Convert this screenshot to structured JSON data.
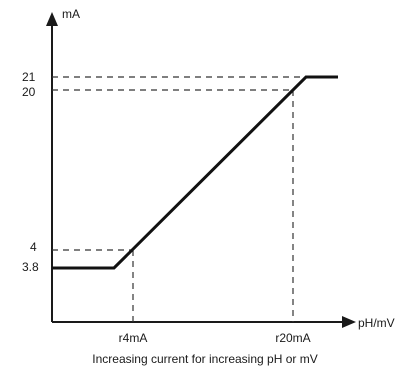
{
  "chart_data": {
    "type": "line",
    "ylabel": "mA",
    "xlabel": "pH/mV",
    "caption": "Increasing current for increasing pH or mV",
    "y_ticks": [
      "21",
      "20",
      "4",
      "3.8"
    ],
    "x_ticks": [
      "r4mA",
      "r20mA"
    ],
    "ylim": [
      3.8,
      21
    ],
    "series": [
      {
        "points": [
          {
            "x": "start",
            "y": 3.8
          },
          {
            "x": "below r4mA",
            "y": 3.8
          },
          {
            "x": "r4mA",
            "y": 4
          },
          {
            "x": "r20mA",
            "y": 20
          },
          {
            "x": "above r20mA",
            "y": 21
          },
          {
            "x": "end",
            "y": 21
          }
        ]
      }
    ],
    "grid": false,
    "reference_lines": "dashed guides at 21, 20, 4, r4mA and r20mA"
  }
}
